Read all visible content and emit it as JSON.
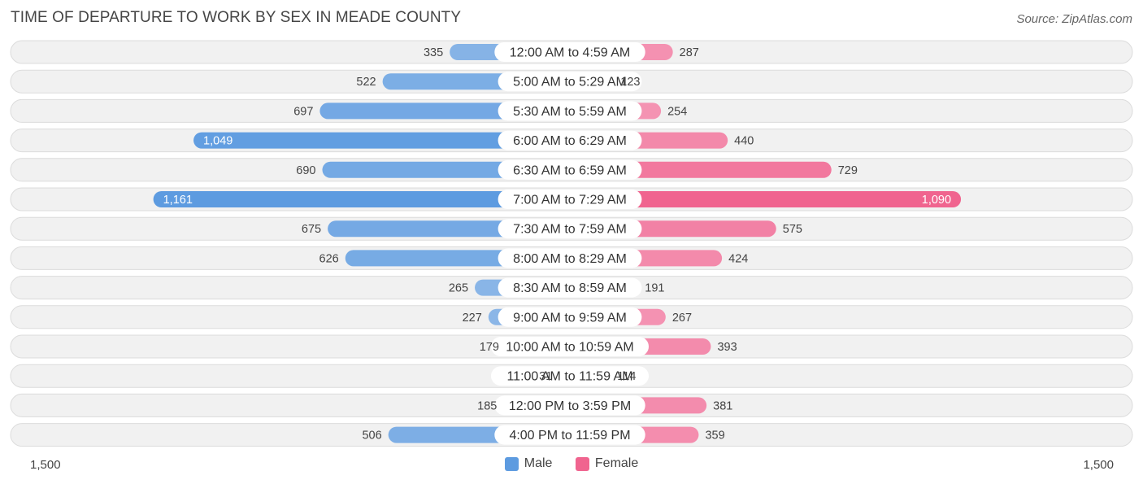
{
  "title": "TIME OF DEPARTURE TO WORK BY SEX IN MEADE COUNTY",
  "source": "Source: ZipAtlas.com",
  "colors": {
    "male_light": "#a9c8ec",
    "male_dark": "#5d9be0",
    "female_light": "#f7b6cc",
    "female_dark": "#f0648f",
    "row_bg": "#f1f1f1",
    "row_border": "#dcdcdc"
  },
  "chart_data": {
    "type": "bar",
    "orientation": "horizontal-diverging",
    "categories": [
      "12:00 AM to 4:59 AM",
      "5:00 AM to 5:29 AM",
      "5:30 AM to 5:59 AM",
      "6:00 AM to 6:29 AM",
      "6:30 AM to 6:59 AM",
      "7:00 AM to 7:29 AM",
      "7:30 AM to 7:59 AM",
      "8:00 AM to 8:29 AM",
      "8:30 AM to 8:59 AM",
      "9:00 AM to 9:59 AM",
      "10:00 AM to 10:59 AM",
      "11:00 AM to 11:59 AM",
      "12:00 PM to 3:59 PM",
      "4:00 PM to 11:59 PM"
    ],
    "series": [
      {
        "name": "Male",
        "values": [
          335,
          522,
          697,
          1049,
          690,
          1161,
          675,
          626,
          265,
          227,
          179,
          31,
          185,
          506
        ]
      },
      {
        "name": "Female",
        "values": [
          287,
          123,
          254,
          440,
          729,
          1090,
          575,
          424,
          191,
          267,
          393,
          114,
          381,
          359
        ]
      }
    ],
    "value_labels": {
      "male": [
        "335",
        "522",
        "697",
        "1,049",
        "690",
        "1,161",
        "675",
        "626",
        "265",
        "227",
        "179",
        "31",
        "185",
        "506"
      ],
      "female": [
        "287",
        "123",
        "254",
        "440",
        "729",
        "1,090",
        "575",
        "424",
        "191",
        "267",
        "393",
        "114",
        "381",
        "359"
      ]
    },
    "xlim": [
      -1500,
      1500
    ],
    "axis_left_label": "1,500",
    "axis_right_label": "1,500",
    "legend_position": "bottom-center"
  }
}
